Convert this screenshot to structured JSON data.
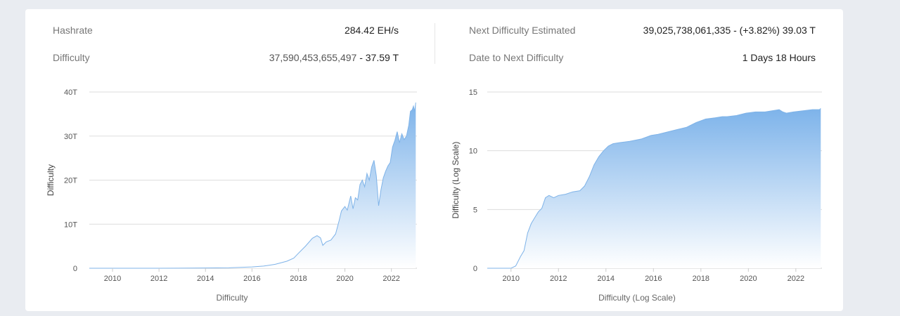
{
  "stats": {
    "hashrate_label": "Hashrate",
    "hashrate_value": "284.42 EH/s",
    "difficulty_label": "Difficulty",
    "difficulty_value_main": "37,590,453,655,497",
    "difficulty_value_short": " - 37.59 T",
    "next_label": "Next Difficulty Estimated",
    "next_value": "39,025,738,061,335 - (+3.82%) 39.03 T",
    "date_label": "Date to Next Difficulty",
    "date_value": "1 Days 18 Hours"
  },
  "colors": {
    "line": "#7fb3e8",
    "fill_top": "#7db3ea",
    "fill_bottom": "#ffffff",
    "grid": "#dddddd",
    "text": "#555555"
  },
  "chart_data": [
    {
      "type": "area",
      "xlabel": "Difficulty",
      "ylabel": "Difficulty",
      "xlim": [
        2009.0,
        2023.1
      ],
      "ylim": [
        0,
        40
      ],
      "y_ticks": [
        0,
        10,
        20,
        30,
        40
      ],
      "y_tick_labels": [
        "0",
        "10T",
        "20T",
        "30T",
        "40T"
      ],
      "x_ticks": [
        2010,
        2012,
        2014,
        2016,
        2018,
        2020,
        2022
      ],
      "x_tick_labels": [
        "2010",
        "2012",
        "2014",
        "2016",
        "2018",
        "2020",
        "2022"
      ],
      "grid": true,
      "x": [
        2009.0,
        2012.0,
        2014.0,
        2015.0,
        2016.0,
        2016.5,
        2017.0,
        2017.5,
        2017.8,
        2018.0,
        2018.3,
        2018.6,
        2018.8,
        2018.95,
        2019.05,
        2019.2,
        2019.4,
        2019.6,
        2019.75,
        2019.85,
        2020.0,
        2020.1,
        2020.25,
        2020.35,
        2020.45,
        2020.55,
        2020.65,
        2020.75,
        2020.85,
        2020.95,
        2021.05,
        2021.15,
        2021.25,
        2021.35,
        2021.45,
        2021.55,
        2021.65,
        2021.75,
        2021.85,
        2021.95,
        2022.05,
        2022.15,
        2022.25,
        2022.35,
        2022.45,
        2022.55,
        2022.65,
        2022.75,
        2022.82,
        2022.9,
        2022.95,
        2023.0,
        2023.05
      ],
      "y": [
        0,
        0.002,
        0.06,
        0.1,
        0.3,
        0.5,
        0.9,
        1.6,
        2.3,
        3.4,
        5.0,
        6.8,
        7.4,
        6.9,
        5.2,
        6.0,
        6.4,
        7.8,
        10.8,
        13.0,
        14.0,
        13.2,
        16.4,
        13.5,
        16.0,
        15.5,
        19.0,
        20.0,
        18.5,
        21.5,
        20.0,
        23.0,
        24.5,
        21.0,
        14.2,
        17.8,
        20.5,
        22.0,
        23.2,
        24.0,
        27.5,
        29.0,
        31.0,
        28.5,
        30.5,
        29.2,
        30.0,
        32.5,
        35.6,
        36.0,
        36.8,
        35.6,
        37.6
      ]
    },
    {
      "type": "area",
      "xlabel": "Difficulty (Log Scale)",
      "ylabel": "Difficulty (Log Scale)",
      "xlim": [
        2009.0,
        2023.1
      ],
      "ylim": [
        0,
        15
      ],
      "y_ticks": [
        0,
        5,
        10,
        15
      ],
      "y_tick_labels": [
        "0",
        "5",
        "10",
        "15"
      ],
      "x_ticks": [
        2010,
        2012,
        2014,
        2016,
        2018,
        2020,
        2022
      ],
      "x_tick_labels": [
        "2010",
        "2012",
        "2014",
        "2016",
        "2018",
        "2020",
        "2022"
      ],
      "grid": true,
      "x": [
        2009.0,
        2010.0,
        2010.2,
        2010.4,
        2010.55,
        2010.7,
        2010.85,
        2011.0,
        2011.15,
        2011.3,
        2011.45,
        2011.6,
        2011.8,
        2012.0,
        2012.3,
        2012.6,
        2012.9,
        2013.1,
        2013.3,
        2013.5,
        2013.7,
        2013.9,
        2014.1,
        2014.3,
        2014.6,
        2015.0,
        2015.5,
        2015.9,
        2016.2,
        2016.6,
        2017.0,
        2017.4,
        2017.8,
        2018.2,
        2018.6,
        2018.9,
        2019.1,
        2019.5,
        2019.9,
        2020.3,
        2020.7,
        2021.0,
        2021.3,
        2021.45,
        2021.6,
        2021.9,
        2022.3,
        2022.7,
        2023.0,
        2023.05
      ],
      "y": [
        0,
        0,
        0.2,
        1.0,
        1.5,
        3.0,
        3.8,
        4.3,
        4.8,
        5.1,
        6.0,
        6.2,
        6.0,
        6.2,
        6.3,
        6.5,
        6.6,
        7.0,
        7.8,
        8.8,
        9.5,
        10.0,
        10.4,
        10.6,
        10.7,
        10.8,
        11.0,
        11.3,
        11.4,
        11.6,
        11.8,
        12.0,
        12.4,
        12.7,
        12.8,
        12.9,
        12.9,
        13.0,
        13.2,
        13.3,
        13.3,
        13.4,
        13.5,
        13.3,
        13.2,
        13.3,
        13.4,
        13.5,
        13.5,
        13.6
      ]
    }
  ]
}
